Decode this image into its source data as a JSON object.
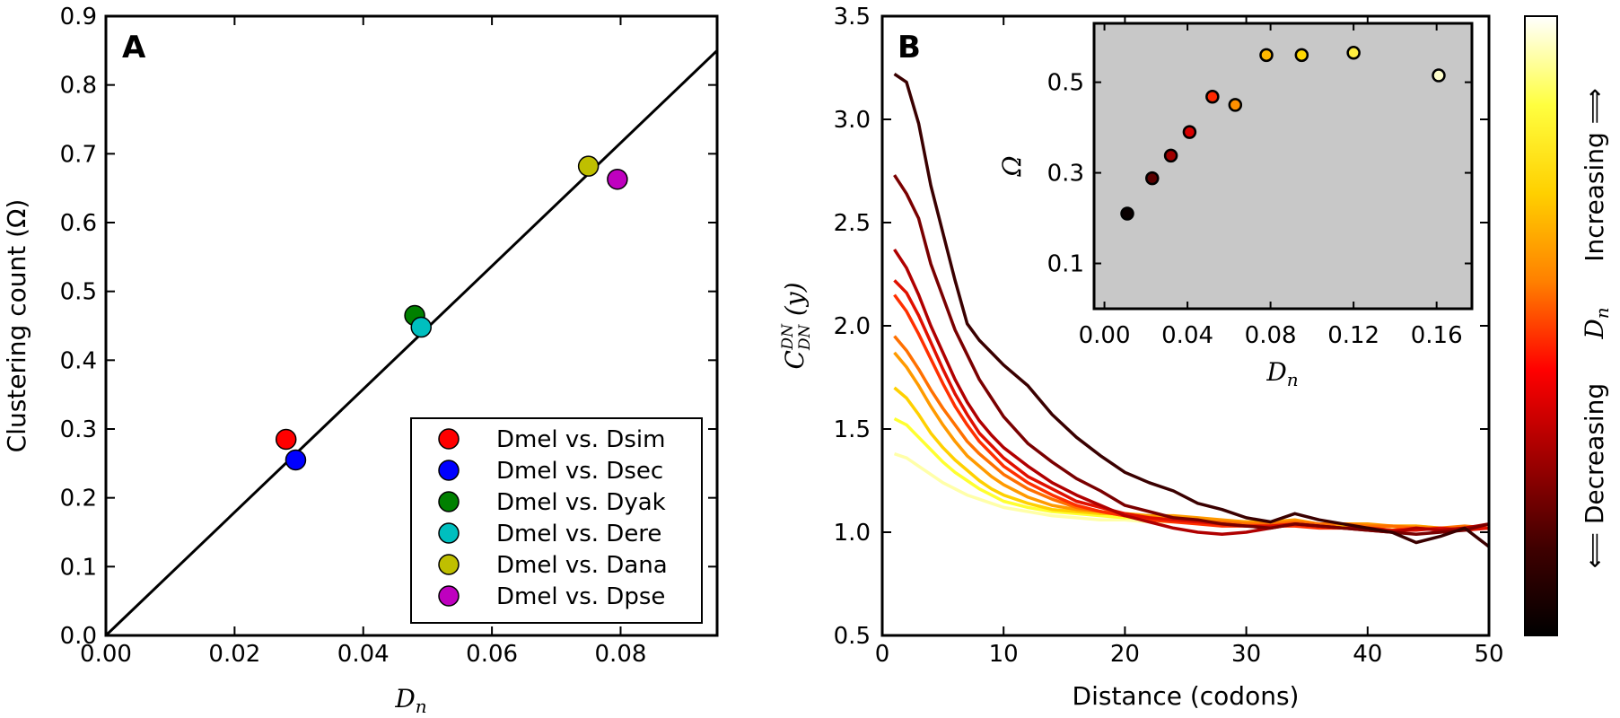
{
  "chart_data": [
    {
      "type": "scatter",
      "panel_label": "A",
      "xlabel": "D_n",
      "ylabel": "Clustering count (Ω)",
      "xlim": [
        0,
        0.095
      ],
      "ylim": [
        0,
        0.9
      ],
      "xticks": [
        "0.00",
        "0.02",
        "0.04",
        "0.06",
        "0.08"
      ],
      "yticks": [
        "0.0",
        "0.1",
        "0.2",
        "0.3",
        "0.4",
        "0.5",
        "0.6",
        "0.7",
        "0.8",
        "0.9"
      ],
      "legend_position": "bottom-right",
      "points": [
        {
          "name": "Dmel vs. Dsim",
          "x": 0.028,
          "y": 0.285,
          "color": "#ff0000"
        },
        {
          "name": "Dmel vs. Dsec",
          "x": 0.0295,
          "y": 0.255,
          "color": "#0000ff"
        },
        {
          "name": "Dmel vs. Dyak",
          "x": 0.048,
          "y": 0.465,
          "color": "#008000"
        },
        {
          "name": "Dmel vs. Dere",
          "x": 0.049,
          "y": 0.448,
          "color": "#00bfbf"
        },
        {
          "name": "Dmel vs. Dana",
          "x": 0.075,
          "y": 0.682,
          "color": "#bfbf00"
        },
        {
          "name": "Dmel vs. Dpse",
          "x": 0.0795,
          "y": 0.663,
          "color": "#bf00bf"
        }
      ],
      "fit_line": {
        "x": [
          0,
          0.095
        ],
        "y": [
          0,
          0.85
        ]
      }
    },
    {
      "type": "line",
      "panel_label": "B",
      "xlabel": "Distance (codons)",
      "ylabel": "C_DN^DN (y)",
      "xlim": [
        0,
        50
      ],
      "ylim": [
        0.5,
        3.5
      ],
      "xticks": [
        "0",
        "10",
        "20",
        "30",
        "40",
        "50"
      ],
      "yticks": [
        "0.5",
        "1.0",
        "1.5",
        "2.0",
        "2.5",
        "3.0",
        "3.5"
      ],
      "x": [
        1,
        2,
        3,
        4,
        5,
        6,
        7,
        8,
        9,
        10,
        12,
        14,
        16,
        18,
        20,
        22,
        24,
        26,
        28,
        30,
        32,
        34,
        36,
        38,
        40,
        42,
        44,
        46,
        48,
        50
      ],
      "series": [
        {
          "color": "#3a0000",
          "values": [
            3.22,
            3.18,
            2.98,
            2.68,
            2.45,
            2.22,
            2.01,
            1.93,
            1.87,
            1.81,
            1.71,
            1.57,
            1.46,
            1.37,
            1.29,
            1.24,
            1.2,
            1.14,
            1.11,
            1.07,
            1.05,
            1.09,
            1.06,
            1.04,
            1.02,
            1.0,
            0.95,
            0.98,
            1.02,
            0.93
          ]
        },
        {
          "color": "#7a0000",
          "values": [
            2.73,
            2.64,
            2.52,
            2.3,
            2.14,
            1.98,
            1.86,
            1.74,
            1.65,
            1.56,
            1.43,
            1.34,
            1.26,
            1.2,
            1.13,
            1.1,
            1.07,
            1.06,
            1.04,
            1.03,
            1.02,
            1.04,
            1.03,
            1.02,
            1.01,
            1.0,
            0.99,
            1.0,
            1.01,
            1.04
          ]
        },
        {
          "color": "#b00000",
          "values": [
            2.37,
            2.28,
            2.15,
            2.0,
            1.87,
            1.74,
            1.63,
            1.54,
            1.47,
            1.41,
            1.32,
            1.24,
            1.18,
            1.13,
            1.08,
            1.05,
            1.02,
            1.0,
            0.99,
            1.0,
            1.02,
            1.04,
            1.03,
            1.02,
            1.01,
            1.0,
            1.02,
            1.01,
            1.02,
            1.04
          ]
        },
        {
          "color": "#e01000",
          "values": [
            2.22,
            2.16,
            2.05,
            1.92,
            1.79,
            1.67,
            1.57,
            1.48,
            1.42,
            1.36,
            1.27,
            1.21,
            1.15,
            1.12,
            1.09,
            1.07,
            1.06,
            1.05,
            1.04,
            1.03,
            1.03,
            1.04,
            1.03,
            1.02,
            1.02,
            1.01,
            1.01,
            1.02,
            1.01,
            1.02
          ]
        },
        {
          "color": "#ff3000",
          "values": [
            2.15,
            2.07,
            1.96,
            1.84,
            1.72,
            1.61,
            1.52,
            1.44,
            1.38,
            1.32,
            1.24,
            1.18,
            1.13,
            1.1,
            1.08,
            1.06,
            1.05,
            1.04,
            1.03,
            1.03,
            1.03,
            1.03,
            1.02,
            1.02,
            1.02,
            1.01,
            1.02,
            1.01,
            1.02,
            1.02
          ]
        },
        {
          "color": "#ff7000",
          "values": [
            1.95,
            1.88,
            1.79,
            1.69,
            1.6,
            1.52,
            1.44,
            1.38,
            1.33,
            1.28,
            1.21,
            1.16,
            1.12,
            1.1,
            1.08,
            1.07,
            1.06,
            1.05,
            1.05,
            1.04,
            1.04,
            1.05,
            1.04,
            1.04,
            1.03,
            1.03,
            1.02,
            1.02,
            1.03,
            1.02
          ]
        },
        {
          "color": "#ff9a00",
          "values": [
            1.87,
            1.8,
            1.71,
            1.61,
            1.52,
            1.44,
            1.37,
            1.32,
            1.27,
            1.23,
            1.17,
            1.13,
            1.11,
            1.1,
            1.09,
            1.08,
            1.08,
            1.07,
            1.06,
            1.05,
            1.05,
            1.06,
            1.04,
            1.04,
            1.04,
            1.03,
            1.03,
            1.02,
            1.02,
            1.02
          ]
        },
        {
          "color": "#ffd000",
          "values": [
            1.7,
            1.65,
            1.57,
            1.48,
            1.41,
            1.35,
            1.3,
            1.25,
            1.21,
            1.18,
            1.14,
            1.11,
            1.1,
            1.09,
            1.09,
            1.08,
            1.07,
            1.06,
            1.05,
            1.05,
            1.04,
            1.04,
            1.04,
            1.03,
            1.03,
            1.03,
            1.02,
            1.02,
            1.02,
            1.02
          ]
        },
        {
          "color": "#ffff30",
          "values": [
            1.55,
            1.52,
            1.46,
            1.4,
            1.34,
            1.29,
            1.25,
            1.21,
            1.18,
            1.15,
            1.12,
            1.1,
            1.09,
            1.08,
            1.07,
            1.07,
            1.06,
            1.05,
            1.05,
            1.05,
            1.04,
            1.04,
            1.04,
            1.03,
            1.03,
            1.03,
            1.03,
            1.02,
            1.02,
            1.02
          ]
        },
        {
          "color": "#ffffa8",
          "values": [
            1.38,
            1.36,
            1.32,
            1.28,
            1.24,
            1.21,
            1.18,
            1.16,
            1.14,
            1.12,
            1.1,
            1.08,
            1.07,
            1.06,
            1.06,
            1.05,
            1.05,
            1.05,
            1.04,
            1.04,
            1.04,
            1.03,
            1.03,
            1.03,
            1.03,
            1.02,
            1.02,
            1.02,
            1.02,
            1.02
          ]
        }
      ]
    },
    {
      "type": "scatter",
      "panel_label": "B inset",
      "xlabel": "D_n",
      "ylabel": "Ω",
      "xlim": [
        -0.005,
        0.177
      ],
      "ylim": [
        0,
        0.63
      ],
      "background": "#c8c8c8",
      "xticks": [
        "0.00",
        "0.04",
        "0.08",
        "0.12",
        "0.16"
      ],
      "yticks": [
        "0.1",
        "0.3",
        "0.5"
      ],
      "points": [
        {
          "x": 0.011,
          "y": 0.21,
          "color": "#0a0000"
        },
        {
          "x": 0.023,
          "y": 0.288,
          "color": "#5a0000"
        },
        {
          "x": 0.032,
          "y": 0.338,
          "color": "#a00000"
        },
        {
          "x": 0.041,
          "y": 0.39,
          "color": "#d80000"
        },
        {
          "x": 0.052,
          "y": 0.468,
          "color": "#ff2800"
        },
        {
          "x": 0.063,
          "y": 0.45,
          "color": "#ff9000"
        },
        {
          "x": 0.078,
          "y": 0.56,
          "color": "#ffb800"
        },
        {
          "x": 0.095,
          "y": 0.56,
          "color": "#ffd800"
        },
        {
          "x": 0.12,
          "y": 0.565,
          "color": "#ffee40"
        },
        {
          "x": 0.161,
          "y": 0.515,
          "color": "#ffffcc"
        }
      ]
    }
  ],
  "colorbar": {
    "label": "D_n",
    "increasing_label": "Increasing ⟹",
    "decreasing_label": "⟸ Decreasing",
    "stops": [
      "#000000",
      "#400000",
      "#a00000",
      "#ff0000",
      "#ff8000",
      "#ffd000",
      "#ffff40",
      "#ffffff"
    ]
  }
}
